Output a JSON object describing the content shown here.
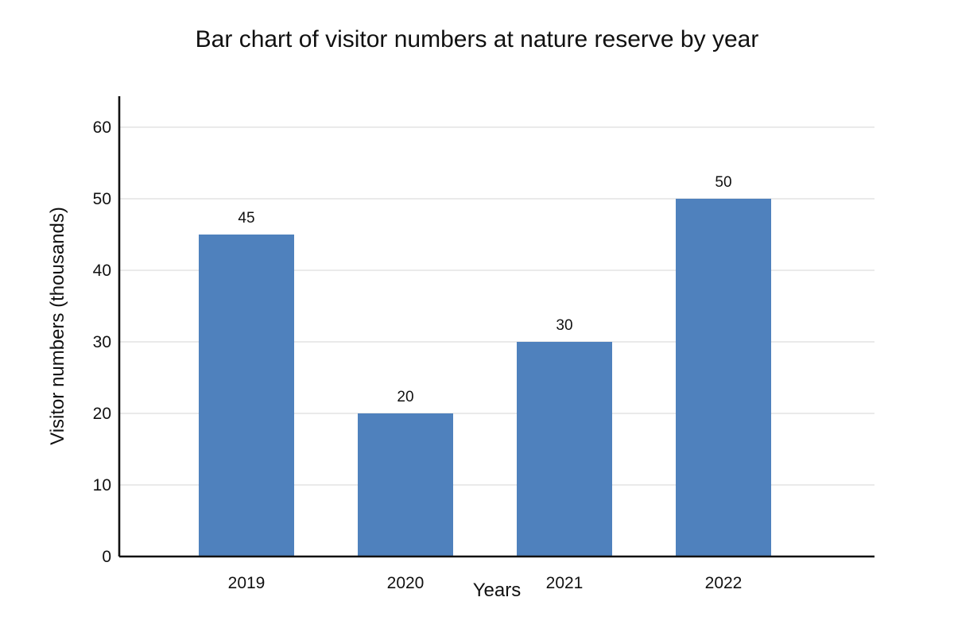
{
  "chart_data": {
    "type": "bar",
    "title": "Bar chart of visitor numbers at nature reserve by year",
    "xlabel": "Years",
    "ylabel": "Visitor numbers (thousands)",
    "categories": [
      "2019",
      "2020",
      "2021",
      "2022"
    ],
    "values": [
      45,
      20,
      30,
      50
    ],
    "value_labels": [
      "45",
      "20",
      "30",
      "50"
    ],
    "ylim": [
      0,
      60
    ],
    "yticks": [
      0,
      10,
      20,
      30,
      40,
      50,
      60
    ],
    "ytick_labels": [
      "0",
      "10",
      "20",
      "30",
      "40",
      "50",
      "60"
    ],
    "grid": true,
    "bar_color": "#4f81bd"
  }
}
